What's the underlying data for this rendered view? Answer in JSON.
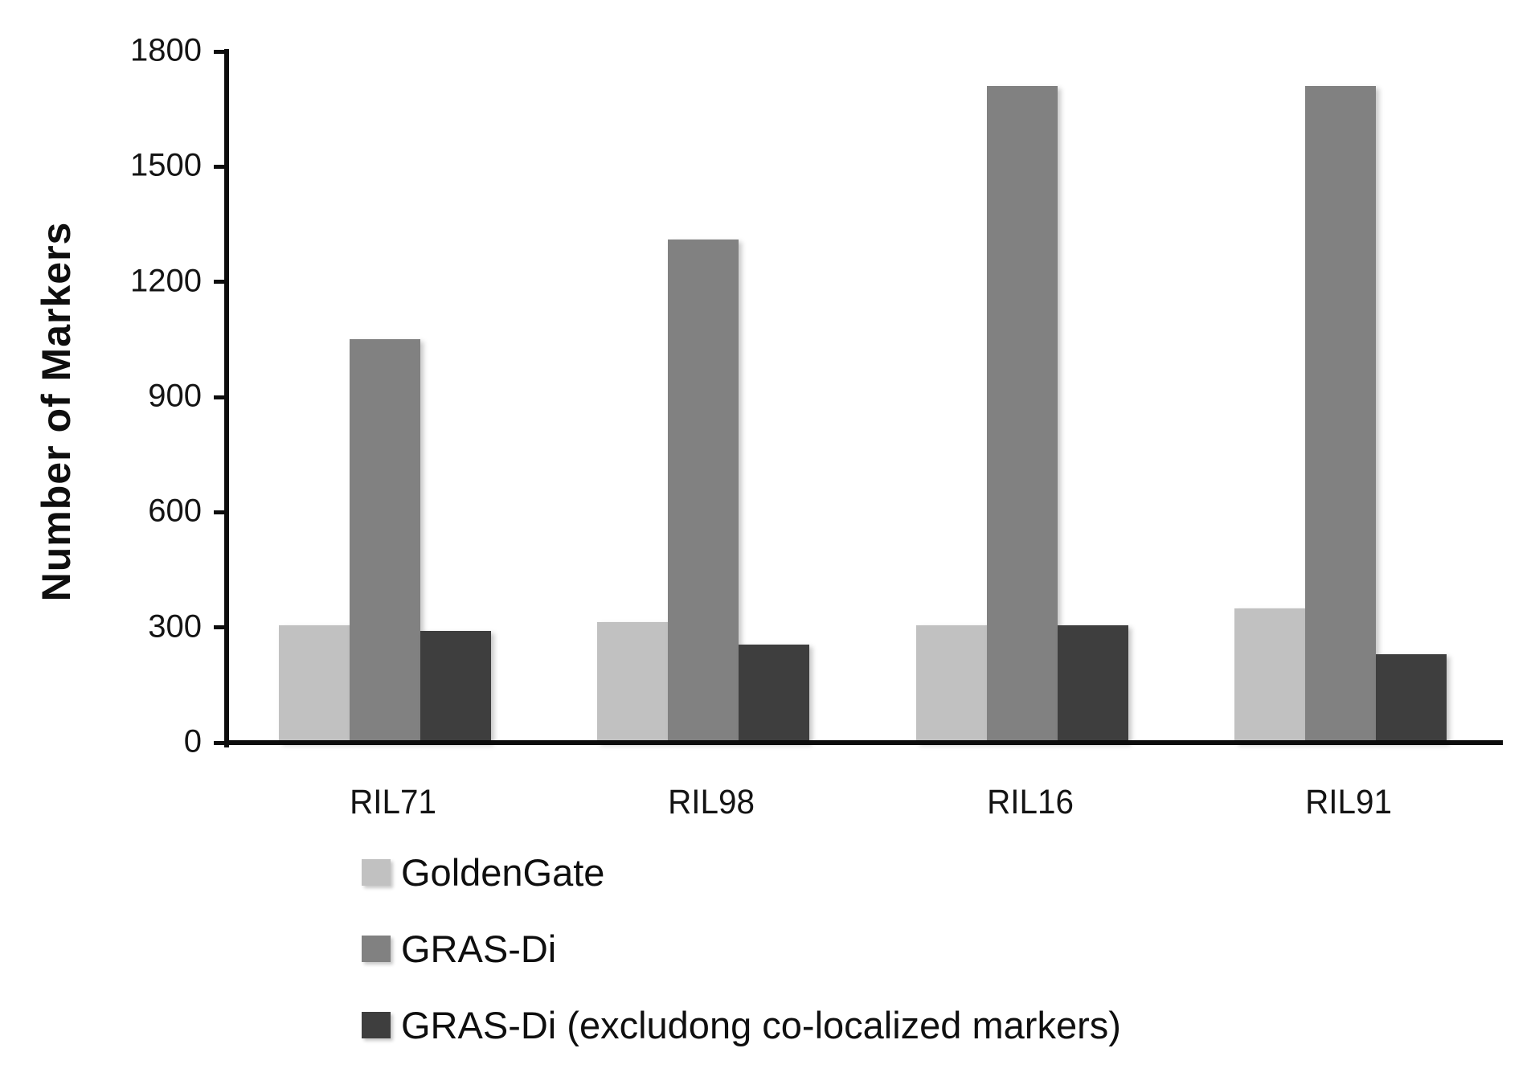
{
  "figure": {
    "background_color": "#ffffff",
    "axis_color": "#0d0d0d",
    "text_color": "#141414"
  },
  "chart_data": {
    "type": "bar",
    "title": "",
    "xlabel": "",
    "ylabel": "Number of Markers",
    "categories": [
      "RIL71",
      "RIL98",
      "RIL16",
      "RIL91"
    ],
    "series": [
      {
        "name": "GoldenGate",
        "color": "#c1c1c1",
        "values": [
          305,
          315,
          305,
          350
        ]
      },
      {
        "name": "GRAS-Di",
        "color": "#818181",
        "values": [
          1050,
          1310,
          1710,
          1710
        ]
      },
      {
        "name": "GRAS-Di (excludong co-localized markers)",
        "color": "#3e3e3e",
        "values": [
          290,
          255,
          305,
          230
        ]
      }
    ],
    "y_axis": {
      "min": 0,
      "max": 1800,
      "tick_step": 300,
      "ticks": [
        0,
        300,
        600,
        900,
        1200,
        1500,
        1800
      ]
    },
    "grid": false,
    "legend_position": "bottom-left"
  }
}
